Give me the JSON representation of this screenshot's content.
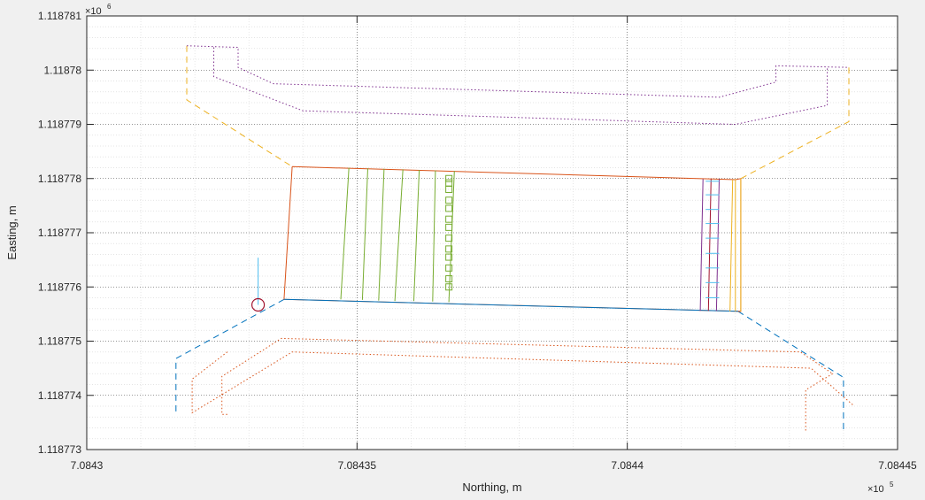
{
  "chart_data": {
    "type": "line",
    "title": "",
    "xlabel": "Northing, m",
    "ylabel": "Easting, m",
    "x_exponent_label": "×10",
    "x_exponent": "5",
    "y_exponent_label": "×10",
    "y_exponent": "6",
    "xlim": [
      708430,
      708445
    ],
    "ylim": [
      1118773,
      1118781
    ],
    "x_ticks": [
      708430,
      708435,
      708440,
      708445
    ],
    "x_tick_labels": [
      "7.0843",
      "7.08435",
      "7.0844",
      "7.08445"
    ],
    "y_ticks": [
      1118773,
      1118774,
      1118775,
      1118776,
      1118777,
      1118778,
      1118779,
      1118780,
      1118781
    ],
    "y_tick_labels": [
      "1.118773",
      "1.118774",
      "1.118775",
      "1.118776",
      "1.118777",
      "1.118778",
      "1.118779",
      "1.11878",
      "1.118781"
    ],
    "grid": true,
    "minor_grid": true,
    "colors": {
      "blue": "#0072bd",
      "orange": "#d95319",
      "yellow": "#edb120",
      "purple": "#7e2f8e",
      "green": "#77ac30",
      "cyan": "#4dbeee",
      "red": "#a2142f"
    },
    "series": [
      {
        "color": "blue",
        "style": "dash",
        "x": [
          708433.65,
          708431.65,
          708431.65
        ],
        "y": [
          1118775.77,
          1118774.68,
          1118773.66
        ]
      },
      {
        "color": "blue",
        "style": "dash",
        "x": [
          708442.05,
          708444.0,
          708444.0
        ],
        "y": [
          1118775.55,
          1118774.33,
          1118773.35
        ]
      },
      {
        "color": "orange",
        "style": "dot",
        "x": [
          708432.6,
          708431.95,
          708431.95,
          708433.8,
          708443.4,
          708444.2
        ],
        "y": [
          1118774.8,
          1118774.3,
          1118773.68,
          1118774.8,
          1118774.5,
          1118773.8
        ]
      },
      {
        "color": "orange",
        "style": "dot",
        "x": [
          708432.6,
          708432.5,
          708432.5,
          708433.6,
          708443.2,
          708443.8
        ],
        "y": [
          1118773.65,
          1118773.65,
          1118774.35,
          1118775.05,
          1118774.8,
          1118774.4
        ]
      },
      {
        "color": "orange",
        "style": "dot",
        "x": [
          708443.8,
          708443.3,
          708443.3
        ],
        "y": [
          1118774.4,
          1118774.1,
          1118773.35
        ]
      },
      {
        "color": "yellow",
        "style": "dash",
        "x": [
          708431.85,
          708431.85,
          708433.8
        ],
        "y": [
          1118780.45,
          1118779.45,
          1118778.22
        ]
      },
      {
        "color": "yellow",
        "style": "dash",
        "x": [
          708444.1,
          708444.1,
          708442.1
        ],
        "y": [
          1118780.05,
          1118779.05,
          1118778.0
        ]
      },
      {
        "color": "purple",
        "style": "dot",
        "x": [
          708431.85,
          708432.8,
          708432.8,
          708433.45,
          708441.7,
          708442.75,
          708442.75,
          708444.1
        ],
        "y": [
          1118780.45,
          1118780.42,
          1118780.05,
          1118779.75,
          1118779.5,
          1118779.78,
          1118780.08,
          1118780.05
        ]
      },
      {
        "color": "purple",
        "style": "dot",
        "x": [
          708432.35,
          708432.35,
          708434.0,
          708442.0,
          708443.7,
          708443.7
        ],
        "y": [
          1118780.42,
          1118779.88,
          1118779.25,
          1118779.0,
          1118779.35,
          1118780.05
        ]
      },
      {
        "color": "orange",
        "style": "solid",
        "x": [
          708433.8,
          708442.0,
          708442.1,
          708442.1,
          708433.65,
          708433.8
        ],
        "y": [
          1118778.22,
          1118777.98,
          1118778.0,
          1118775.55,
          1118775.77,
          1118778.22
        ]
      },
      {
        "color": "blue",
        "style": "solid",
        "x": [
          708433.65,
          708442.05
        ],
        "y": [
          1118775.77,
          1118775.55
        ]
      },
      {
        "color": "green",
        "style": "solid",
        "x": [
          708434.7,
          708434.85
        ],
        "y": [
          1118775.77,
          1118778.2
        ]
      },
      {
        "color": "green",
        "style": "solid",
        "x": [
          708435.1,
          708435.2
        ],
        "y": [
          1118775.76,
          1118778.19
        ]
      },
      {
        "color": "green",
        "style": "solid",
        "x": [
          708435.4,
          708435.5
        ],
        "y": [
          1118775.75,
          1118778.18
        ]
      },
      {
        "color": "green",
        "style": "solid",
        "x": [
          708435.7,
          708435.85
        ],
        "y": [
          1118775.74,
          1118778.17
        ]
      },
      {
        "color": "green",
        "style": "solid",
        "x": [
          708436.05,
          708436.15
        ],
        "y": [
          1118775.74,
          1118778.16
        ]
      },
      {
        "color": "green",
        "style": "solid",
        "x": [
          708436.4,
          708436.45
        ],
        "y": [
          1118775.73,
          1118778.15
        ]
      },
      {
        "color": "green",
        "style": "solid",
        "x": [
          708436.7,
          708436.8
        ],
        "y": [
          1118775.72,
          1118778.14
        ]
      },
      {
        "color": "purple",
        "style": "solid",
        "x": [
          708441.35,
          708441.4
        ],
        "y": [
          1118775.56,
          1118777.99
        ]
      },
      {
        "color": "purple",
        "style": "solid",
        "x": [
          708441.65,
          708441.7
        ],
        "y": [
          1118775.56,
          1118777.99
        ]
      },
      {
        "color": "red",
        "style": "solid",
        "x": [
          708441.5,
          708441.55
        ],
        "y": [
          1118775.56,
          1118777.99
        ]
      },
      {
        "color": "yellow",
        "style": "solid",
        "x": [
          708441.9,
          708441.95
        ],
        "y": [
          1118775.55,
          1118777.98
        ]
      },
      {
        "color": "yellow",
        "style": "solid",
        "x": [
          708442.0,
          708442.0
        ],
        "y": [
          1118775.55,
          1118777.99
        ]
      },
      {
        "color": "yellow",
        "style": "solid",
        "x": [
          708442.1,
          708442.1
        ],
        "y": [
          1118775.55,
          1118778.0
        ]
      },
      {
        "color": "cyan",
        "style": "solid",
        "x": [
          708433.17,
          708433.17
        ],
        "y": [
          1118775.67,
          1118776.54
        ]
      }
    ],
    "square_markers": {
      "color": "green",
      "x": [
        708436.7,
        708436.7,
        708436.7,
        708436.7,
        708436.7,
        708436.7,
        708436.7,
        708436.7,
        708436.7,
        708436.7,
        708436.7,
        708436.7,
        708436.7
      ],
      "y": [
        1118776.0,
        1118776.15,
        1118776.35,
        1118776.55,
        1118776.7,
        1118776.9,
        1118777.1,
        1118777.25,
        1118777.45,
        1118777.6,
        1118777.8,
        1118778.0,
        1118777.92
      ]
    },
    "cyan_ticks": {
      "color": "cyan",
      "x0": 708441.45,
      "x1": 708441.7,
      "y": [
        1118775.8,
        1118776.08,
        1118776.35,
        1118776.62,
        1118776.9,
        1118777.17,
        1118777.43,
        1118777.7,
        1118777.95
      ]
    },
    "circle_marker": {
      "color": "red",
      "x": 708433.17,
      "y": 1118775.67
    }
  }
}
